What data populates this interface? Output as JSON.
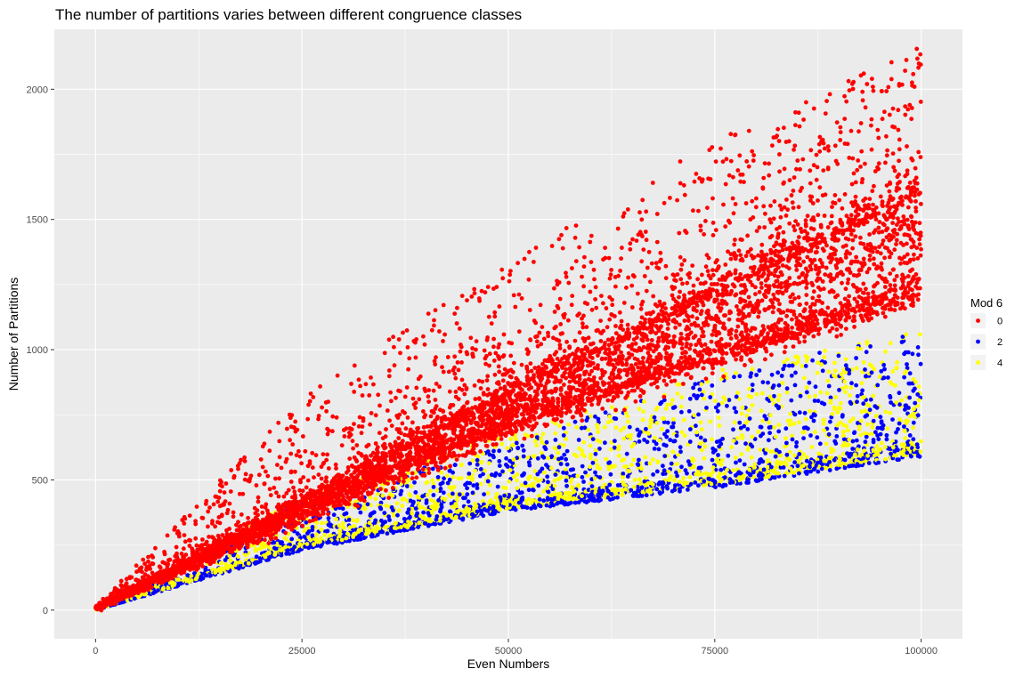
{
  "chart_data": {
    "type": "scatter",
    "title": "The number of partitions varies between different congruence classes",
    "xlabel": "Even Numbers",
    "ylabel": "Number of Partitions",
    "xlim": [
      -5000,
      105000
    ],
    "ylim": [
      -110,
      2230
    ],
    "x_ticks": [
      0,
      25000,
      50000,
      75000,
      100000
    ],
    "x_tick_labels": [
      "0",
      "25000",
      "50000",
      "75000",
      "100000"
    ],
    "y_ticks": [
      0,
      500,
      1000,
      1500,
      2000
    ],
    "y_tick_labels": [
      "0",
      "500",
      "1000",
      "1500",
      "2000"
    ],
    "grid": true,
    "legend_position": "right",
    "legend": {
      "title": "Mod 6",
      "entries": [
        {
          "label": "0",
          "color": "#ff0000"
        },
        {
          "label": "2",
          "color": "#0000ff"
        },
        {
          "label": "4",
          "color": "#ffff00"
        }
      ]
    },
    "series": [
      {
        "name": "0",
        "color": "#ff0000",
        "x_range": [
          2,
          100000
        ],
        "approx_lower_envelope": [
          [
            0,
            5
          ],
          [
            25000,
            380
          ],
          [
            50000,
            700
          ],
          [
            75000,
            960
          ],
          [
            100000,
            1180
          ]
        ],
        "approx_bands": [
          [
            [
              0,
              8
            ],
            [
              50000,
              830
            ],
            [
              100000,
              1600
            ]
          ],
          [
            [
              0,
              8
            ],
            [
              50000,
              770
            ],
            [
              100000,
              1440
            ]
          ],
          [
            [
              0,
              6
            ],
            [
              50000,
              700
            ],
            [
              100000,
              1240
            ]
          ]
        ],
        "approx_upper_envelope": [
          [
            0,
            15
          ],
          [
            25000,
            820
          ],
          [
            50000,
            1340
          ],
          [
            75000,
            1800
          ],
          [
            100000,
            2170
          ]
        ]
      },
      {
        "name": "2",
        "color": "#0000ff",
        "x_range": [
          2,
          100000
        ],
        "approx_lower_envelope": [
          [
            0,
            0
          ],
          [
            25000,
            230
          ],
          [
            50000,
            380
          ],
          [
            75000,
            470
          ],
          [
            100000,
            590
          ]
        ],
        "approx_upper_envelope": [
          [
            0,
            5
          ],
          [
            25000,
            420
          ],
          [
            50000,
            640
          ],
          [
            75000,
            900
          ],
          [
            100000,
            1080
          ]
        ]
      },
      {
        "name": "4",
        "color": "#ffff00",
        "x_range": [
          2,
          100000
        ],
        "approx_lower_envelope": [
          [
            0,
            0
          ],
          [
            25000,
            240
          ],
          [
            50000,
            390
          ],
          [
            75000,
            480
          ],
          [
            100000,
            600
          ]
        ],
        "approx_upper_envelope": [
          [
            0,
            5
          ],
          [
            25000,
            440
          ],
          [
            50000,
            680
          ],
          [
            75000,
            920
          ],
          [
            100000,
            1070
          ]
        ]
      }
    ]
  }
}
